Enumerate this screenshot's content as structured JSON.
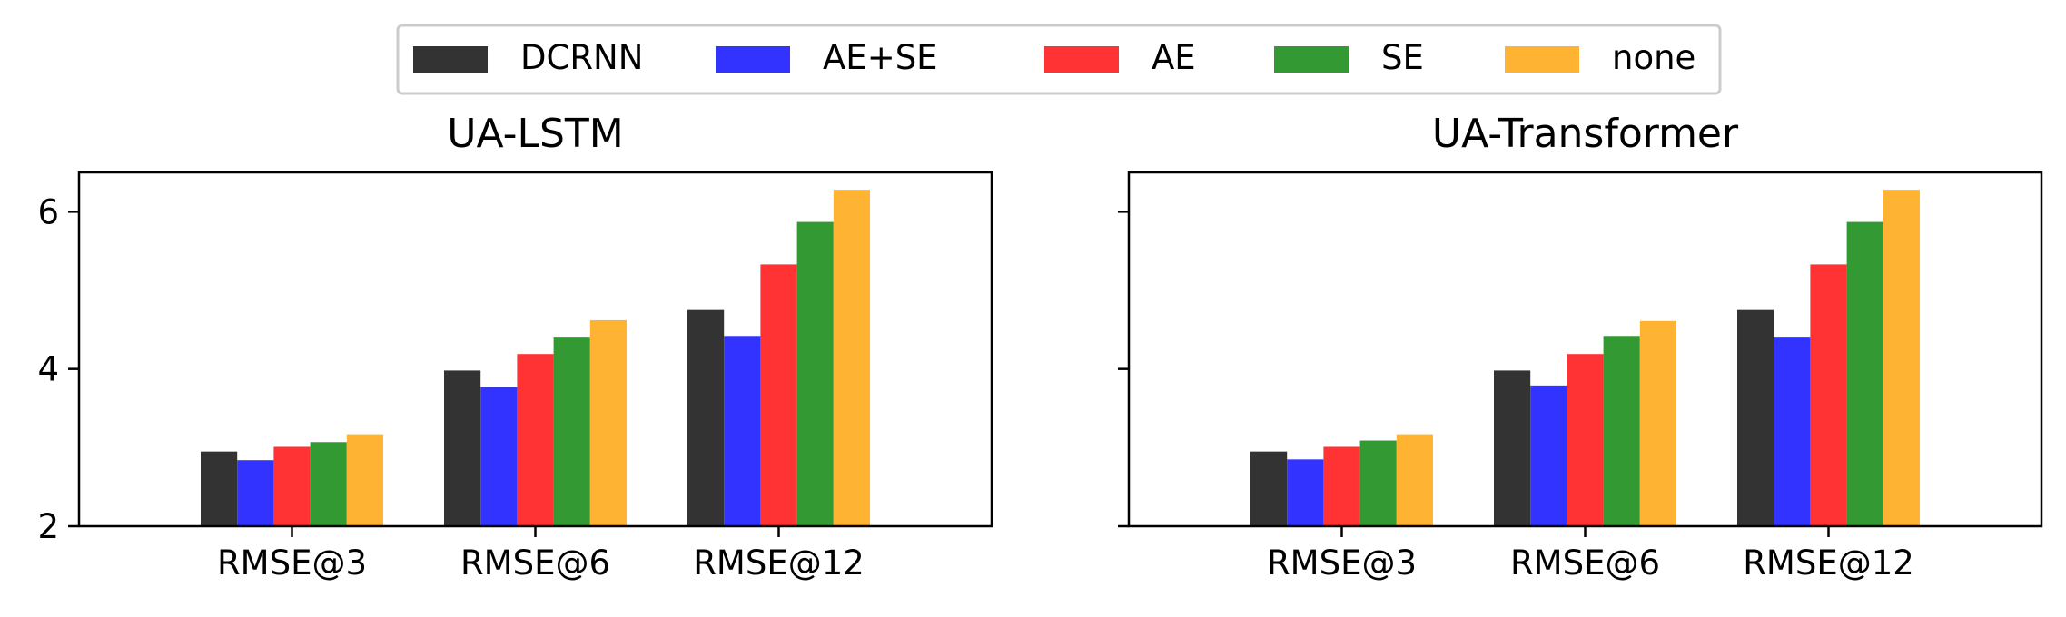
{
  "legend": {
    "placement": "top-center",
    "entries": [
      {
        "label": "DCRNN",
        "color": "#333333"
      },
      {
        "label": "AE+SE",
        "color": "#3333ff"
      },
      {
        "label": "AE",
        "color": "#ff3333"
      },
      {
        "label": "SE",
        "color": "#339933"
      },
      {
        "label": "none",
        "color": "#ffb333"
      }
    ]
  },
  "chart_data": [
    {
      "type": "bar",
      "title": "UA-LSTM",
      "categories": [
        "RMSE@3",
        "RMSE@6",
        "RMSE@12"
      ],
      "ylim": [
        2,
        6.5
      ],
      "yticks": [
        2,
        4,
        6
      ],
      "ytick_labels": [
        "2",
        "4",
        "6"
      ],
      "grid": false,
      "series": [
        {
          "name": "DCRNN",
          "values": [
            2.95,
            3.98,
            4.75
          ]
        },
        {
          "name": "AE+SE",
          "values": [
            2.84,
            3.77,
            4.42
          ]
        },
        {
          "name": "AE",
          "values": [
            3.01,
            4.19,
            5.33
          ]
        },
        {
          "name": "SE",
          "values": [
            3.07,
            4.41,
            5.87
          ]
        },
        {
          "name": "none",
          "values": [
            3.17,
            4.62,
            6.28
          ]
        }
      ]
    },
    {
      "type": "bar",
      "title": "UA-Transformer",
      "categories": [
        "RMSE@3",
        "RMSE@6",
        "RMSE@12"
      ],
      "ylim": [
        2,
        6.5
      ],
      "yticks": [
        2,
        4,
        6
      ],
      "ytick_labels": [
        "",
        "",
        ""
      ],
      "grid": false,
      "series": [
        {
          "name": "DCRNN",
          "values": [
            2.95,
            3.98,
            4.75
          ]
        },
        {
          "name": "AE+SE",
          "values": [
            2.85,
            3.79,
            4.41
          ]
        },
        {
          "name": "AE",
          "values": [
            3.01,
            4.19,
            5.33
          ]
        },
        {
          "name": "SE",
          "values": [
            3.09,
            4.42,
            5.87
          ]
        },
        {
          "name": "none",
          "values": [
            3.17,
            4.61,
            6.28
          ]
        }
      ]
    }
  ]
}
